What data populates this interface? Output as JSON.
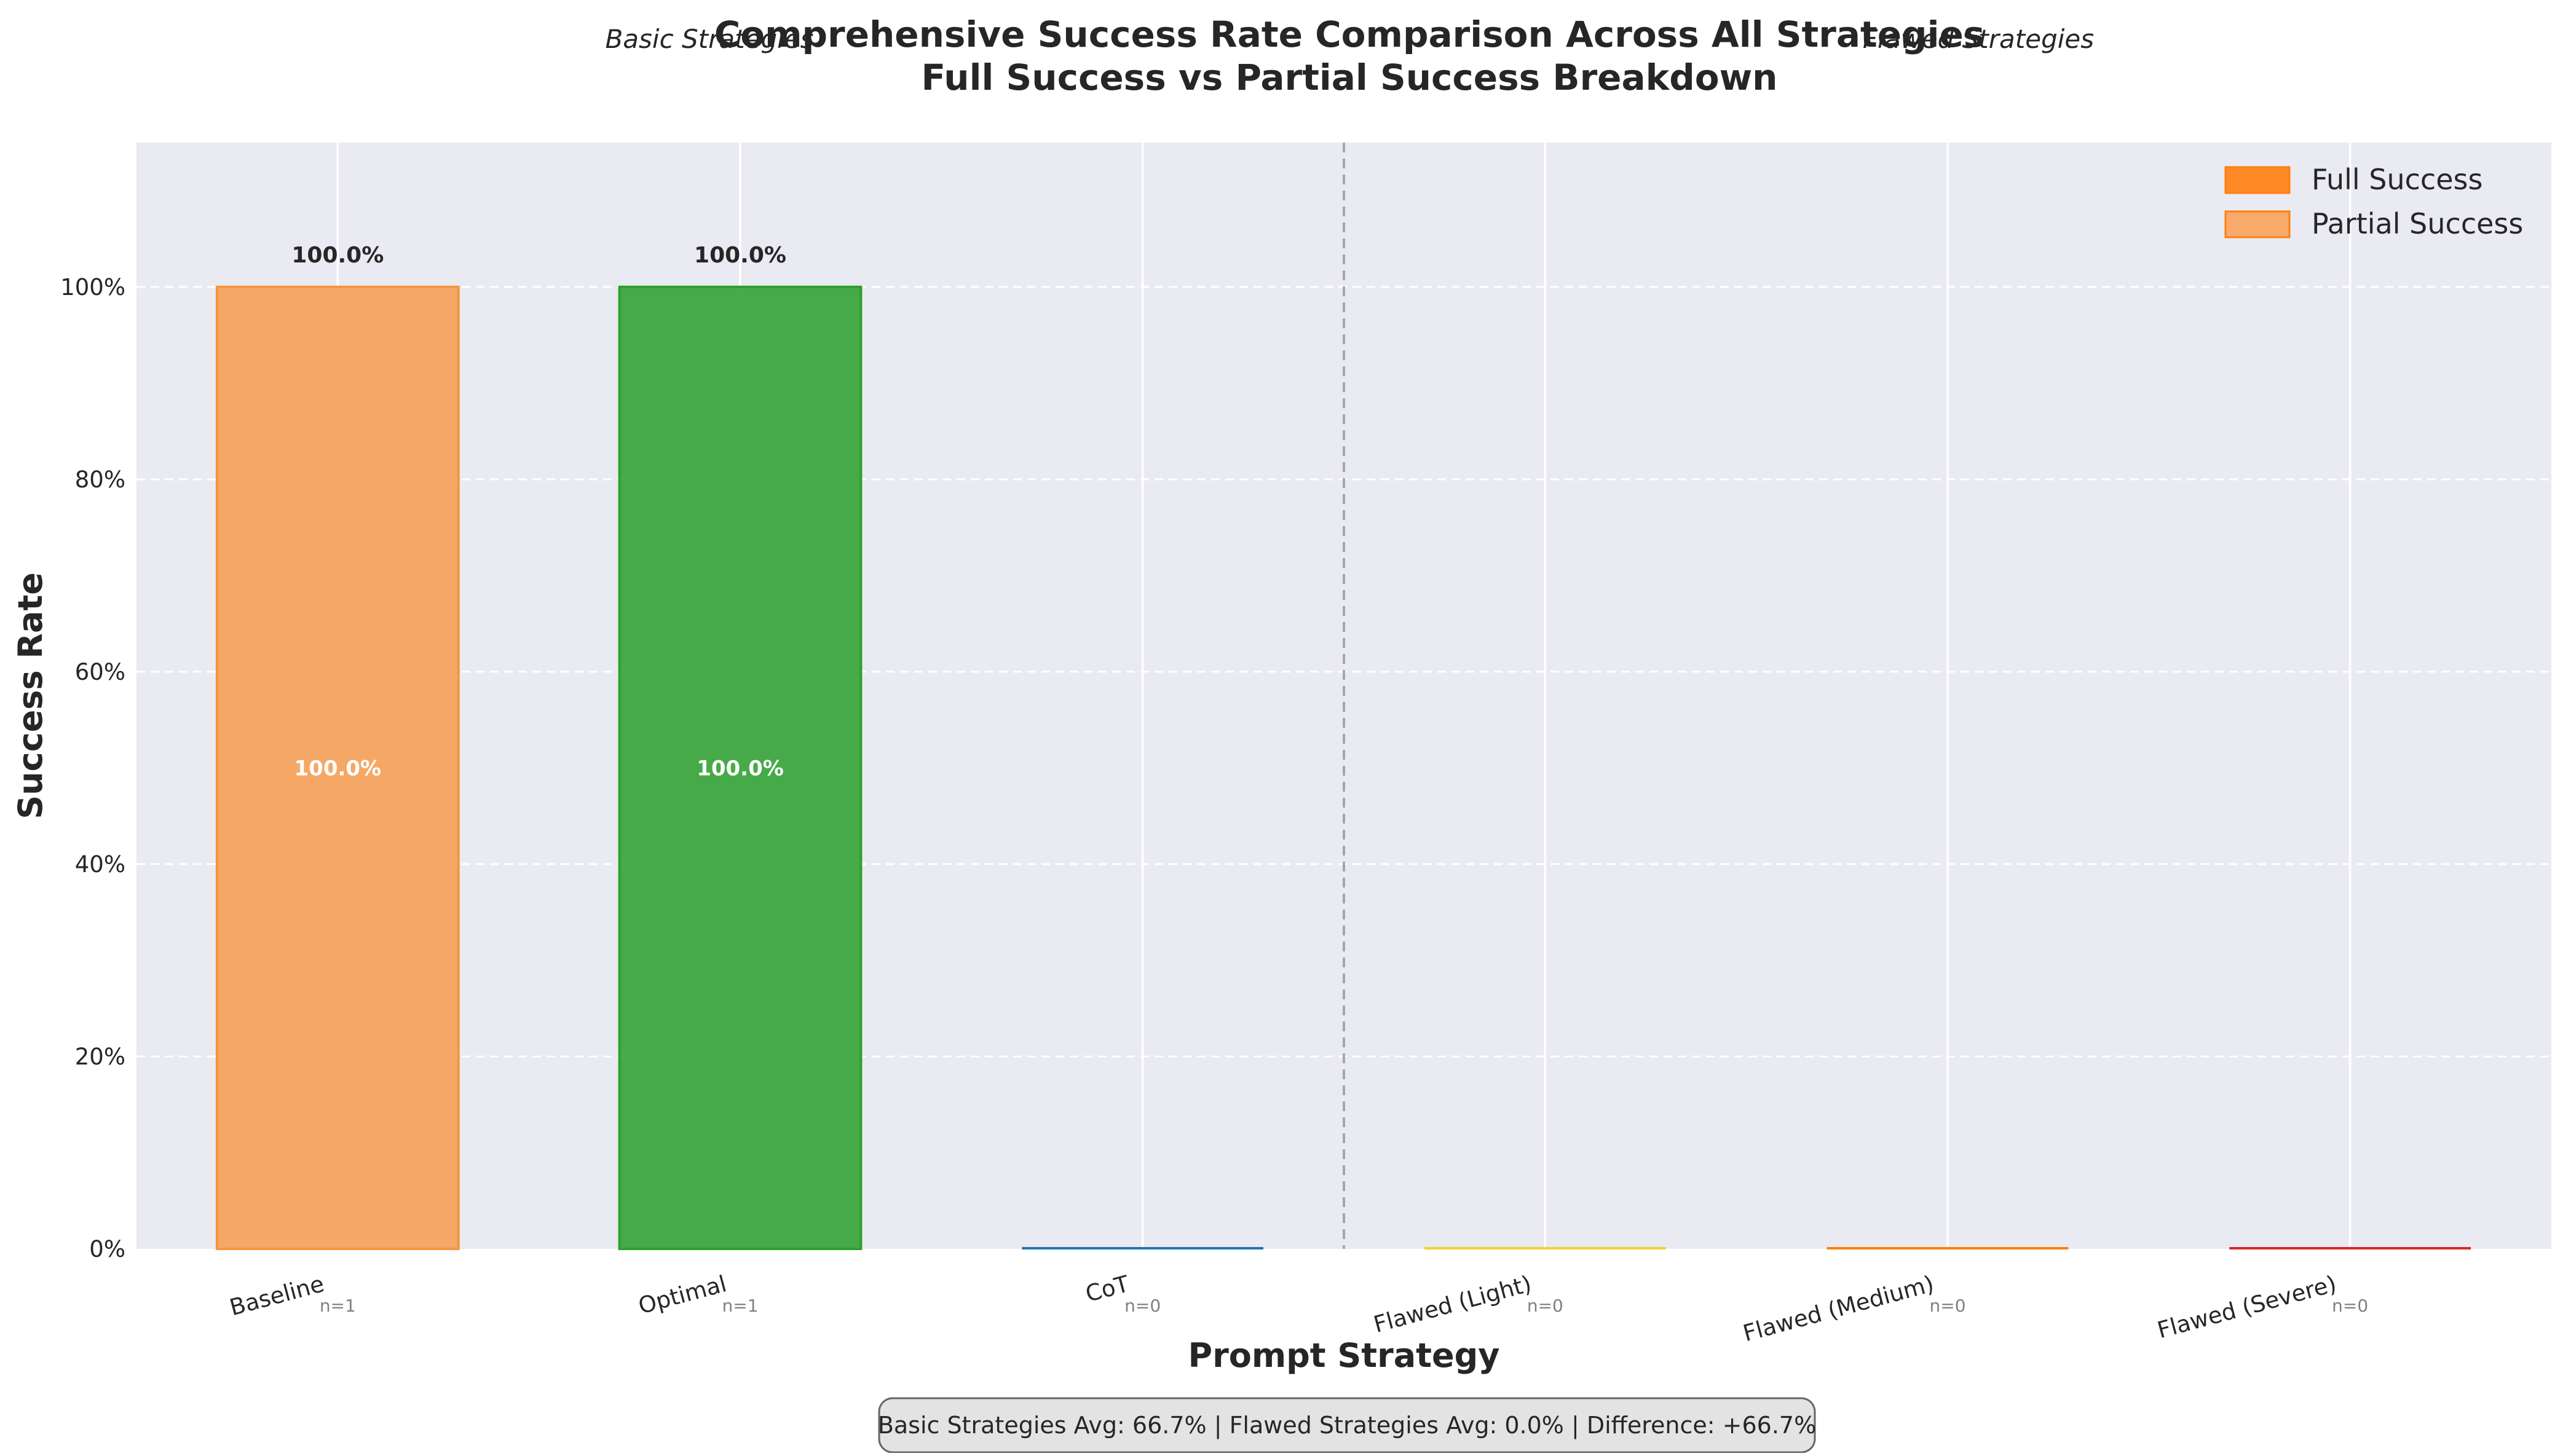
{
  "chart_data": {
    "type": "bar",
    "title_line1": "Comprehensive Success Rate Comparison Across All Strategies",
    "title_line2": "Full Success vs Partial Success Breakdown",
    "xlabel": "Prompt Strategy",
    "ylabel": "Success Rate",
    "ylim": [
      0,
      115
    ],
    "y_ticks": [
      {
        "value": 0,
        "label": "0%"
      },
      {
        "value": 20,
        "label": "20%"
      },
      {
        "value": 40,
        "label": "40%"
      },
      {
        "value": 60,
        "label": "60%"
      },
      {
        "value": 80,
        "label": "80%"
      },
      {
        "value": 100,
        "label": "100%"
      }
    ],
    "grid": true,
    "legend_position": "top-right",
    "legend": [
      {
        "name": "Full Success",
        "color": "#ff7f0e",
        "opacity": 0.9
      },
      {
        "name": "Partial Success",
        "color": "#ff7f0e",
        "opacity": 0.6
      }
    ],
    "group_labels": [
      {
        "text": "Basic Strategies"
      },
      {
        "text": "Flawed Strategies"
      }
    ],
    "categories": [
      {
        "name": "Baseline",
        "full": 0,
        "partial": 100,
        "n_label": "n=1",
        "top_label": "100.0%",
        "inner_label": "100.0%",
        "color": "#f5a866",
        "stroke": "#f4963f"
      },
      {
        "name": "Optimal",
        "full": 100,
        "partial": 0,
        "n_label": "n=1",
        "top_label": "100.0%",
        "inner_label": "100.0%",
        "color": "#3ea63e",
        "stroke": "#2ca02c"
      },
      {
        "name": "CoT",
        "full": 0,
        "partial": 0,
        "n_label": "n=0",
        "top_label": "",
        "inner_label": "",
        "color": "#1f77b4",
        "stroke": "#1f77b4"
      },
      {
        "name": "Flawed (Light)",
        "full": 0,
        "partial": 0,
        "n_label": "n=0",
        "top_label": "",
        "inner_label": "",
        "color": "#f2d12c",
        "stroke": "#f2d12c"
      },
      {
        "name": "Flawed (Medium)",
        "full": 0,
        "partial": 0,
        "n_label": "n=0",
        "top_label": "",
        "inner_label": "",
        "color": "#ff7f0e",
        "stroke": "#ff7f0e"
      },
      {
        "name": "Flawed (Severe)",
        "full": 0,
        "partial": 0,
        "n_label": "n=0",
        "top_label": "",
        "inner_label": "",
        "color": "#d62728",
        "stroke": "#d62728"
      }
    ],
    "summary": "Basic Strategies Avg: 66.7% | Flawed Strategies Avg: 0.0% | Difference: +66.7%"
  }
}
